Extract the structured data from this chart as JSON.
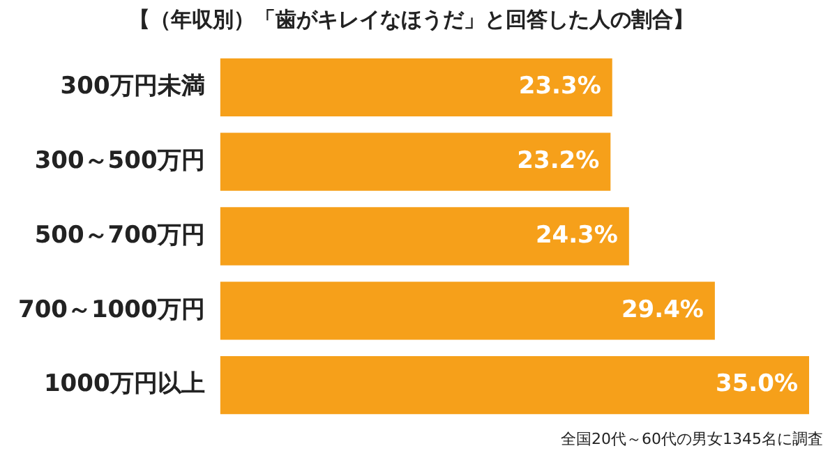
{
  "chart_data": {
    "type": "bar",
    "orientation": "horizontal",
    "title": "【（年収別）「歯がキレイなほうだ」と回答した人の割合】",
    "categories": [
      "300万円未満",
      "300～500万円",
      "500～700万円",
      "700～1000万円",
      "1000万円以上"
    ],
    "values": [
      23.3,
      23.2,
      24.3,
      29.4,
      35.0
    ],
    "value_labels": [
      "23.3%",
      "23.2%",
      "24.3%",
      "29.4%",
      "35.0%"
    ],
    "color": "#f6a01a",
    "xlim": [
      0,
      35
    ],
    "tick_labels": "y",
    "annotations": [
      "全国20代～60代の男女1345名に調査"
    ]
  }
}
